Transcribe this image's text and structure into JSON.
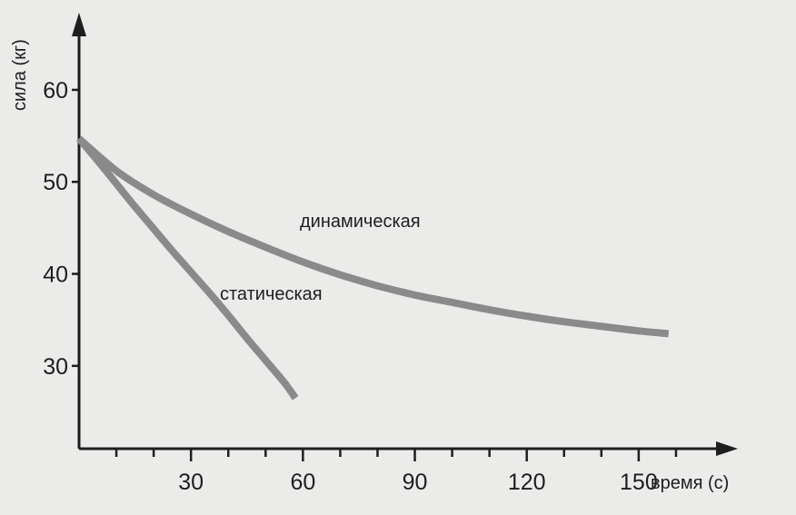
{
  "chart_data": {
    "type": "line",
    "xlabel": "время (с)",
    "ylabel": "сила (кг)",
    "xlim": [
      0,
      170
    ],
    "ylim": [
      21,
      67
    ],
    "x_ticks": [
      30,
      60,
      90,
      120,
      150
    ],
    "y_ticks": [
      30,
      40,
      50,
      60
    ],
    "x_minor_step": 10,
    "grid": false,
    "series": [
      {
        "name": "динамическая",
        "color": "#8a8a8a",
        "x": [
          0,
          10,
          20,
          30,
          40,
          50,
          60,
          70,
          80,
          90,
          100,
          110,
          120,
          130,
          140,
          150,
          158
        ],
        "y": [
          54.7,
          51.2,
          48.6,
          46.5,
          44.6,
          42.9,
          41.3,
          39.9,
          38.7,
          37.7,
          36.9,
          36.1,
          35.4,
          34.8,
          34.3,
          33.8,
          33.5
        ]
      },
      {
        "name": "статическая",
        "color": "#8a8a8a",
        "x": [
          0,
          5,
          10,
          15,
          20,
          25,
          30,
          35,
          40,
          45,
          50,
          55,
          58
        ],
        "y": [
          54.7,
          52.3,
          49.8,
          47.3,
          44.9,
          42.5,
          40.2,
          37.9,
          35.5,
          33.0,
          30.6,
          28.2,
          26.5
        ]
      }
    ]
  }
}
